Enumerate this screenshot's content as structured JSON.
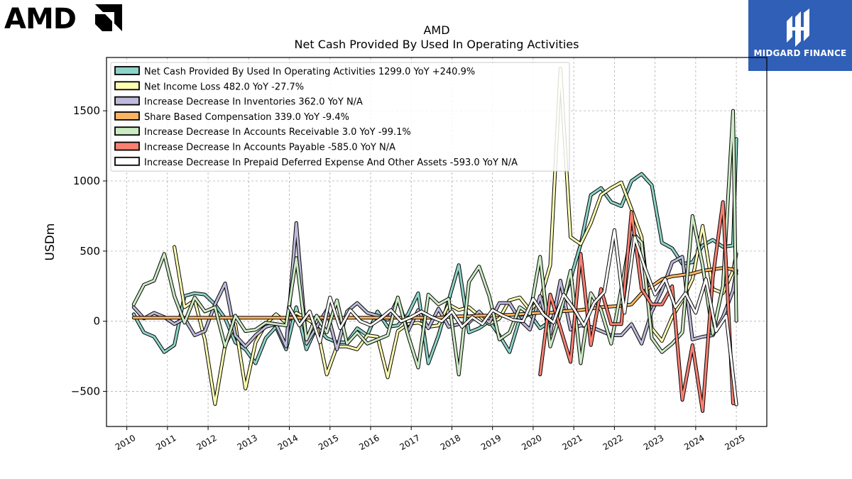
{
  "brand": {
    "company_logo_text": "AMD",
    "publisher_name": "MIDGARD FINANCE"
  },
  "chart_data": {
    "type": "line",
    "title": "AMD",
    "subtitle": "Net Cash Provided By Used In Operating Activities",
    "xlabel": "",
    "ylabel": "USDm",
    "xlim": [
      2009.5,
      2025.75
    ],
    "ylim": [
      -750,
      1880
    ],
    "x_ticks": [
      "2010",
      "2011",
      "2012",
      "2013",
      "2014",
      "2015",
      "2016",
      "2017",
      "2018",
      "2019",
      "2020",
      "2021",
      "2022",
      "2023",
      "2024",
      "2025"
    ],
    "y_ticks": [
      -500,
      0,
      500,
      1000,
      1500
    ],
    "y_tick_labels": [
      "−500",
      "0",
      "500",
      "1000",
      "1500"
    ],
    "grid": true,
    "legend_position": "top-left",
    "series": [
      {
        "name": "Net Cash Provided By Used In Operating Activities",
        "legend": "Net Cash Provided By Used In Operating Activities  1299.0 YoY +240.9%",
        "color": "#8dd3c7",
        "x": [
          2010.17,
          2010.42,
          2010.67,
          2010.92,
          2011.17,
          2011.42,
          2011.67,
          2011.92,
          2012.17,
          2012.42,
          2012.67,
          2012.92,
          2013.17,
          2013.42,
          2013.67,
          2013.92,
          2014.17,
          2014.42,
          2014.67,
          2014.92,
          2015.17,
          2015.42,
          2015.67,
          2015.92,
          2016.17,
          2016.42,
          2016.67,
          2016.92,
          2017.17,
          2017.42,
          2017.67,
          2017.92,
          2018.17,
          2018.42,
          2018.67,
          2018.92,
          2019.17,
          2019.42,
          2019.67,
          2019.92,
          2020.17,
          2020.42,
          2020.67,
          2020.92,
          2021.17,
          2021.42,
          2021.67,
          2021.92,
          2022.17,
          2022.42,
          2022.67,
          2022.92,
          2023.17,
          2023.42,
          2023.67,
          2023.92,
          2024.17,
          2024.42,
          2024.67,
          2024.92,
          2025.0
        ],
        "values": [
          50,
          -80,
          -110,
          -220,
          -170,
          180,
          200,
          190,
          120,
          20,
          -150,
          -200,
          -300,
          -120,
          -40,
          -200,
          100,
          -200,
          -40,
          -120,
          -150,
          -150,
          -50,
          -100,
          70,
          -40,
          -30,
          50,
          200,
          -300,
          -100,
          150,
          400,
          -80,
          -50,
          0,
          -100,
          -220,
          20,
          50,
          -50,
          0,
          100,
          300,
          550,
          900,
          950,
          850,
          820,
          1000,
          1050,
          970,
          560,
          520,
          410,
          420,
          540,
          580,
          530,
          540,
          1300
        ]
      },
      {
        "name": "Net Income Loss",
        "legend": "Net Income Loss  482.0 YoY -27.7%",
        "color": "#ffffb3",
        "x": [
          2011.17,
          2011.42,
          2011.67,
          2011.92,
          2012.17,
          2012.42,
          2012.67,
          2012.92,
          2013.17,
          2013.42,
          2013.67,
          2013.92,
          2014.17,
          2014.42,
          2014.67,
          2014.92,
          2015.17,
          2015.42,
          2015.67,
          2015.92,
          2016.17,
          2016.42,
          2016.67,
          2016.92,
          2017.17,
          2017.42,
          2017.67,
          2017.92,
          2018.17,
          2018.42,
          2018.67,
          2018.92,
          2019.17,
          2019.42,
          2019.67,
          2019.92,
          2020.17,
          2020.42,
          2020.67,
          2020.92,
          2021.17,
          2021.42,
          2021.67,
          2021.92,
          2022.17,
          2022.42,
          2022.67,
          2022.92,
          2023.17,
          2023.42,
          2023.67,
          2023.92,
          2024.17,
          2024.42,
          2024.67,
          2024.92,
          2025.0
        ],
        "values": [
          530,
          100,
          150,
          -130,
          -590,
          -170,
          -20,
          -480,
          -150,
          -20,
          50,
          -10,
          60,
          20,
          -30,
          -380,
          -180,
          -180,
          -200,
          -100,
          -110,
          -400,
          -70,
          -20,
          -10,
          -40,
          -30,
          120,
          80,
          100,
          40,
          -20,
          20,
          150,
          170,
          80,
          150,
          400,
          1800,
          600,
          550,
          700,
          900,
          950,
          990,
          800,
          600,
          -50,
          -140,
          30,
          150,
          300,
          680,
          230,
          200,
          360,
          480
        ]
      },
      {
        "name": "Increase Decrease In Inventories",
        "legend": "Increase Decrease In Inventories  362.0 YoY N/A",
        "color": "#bebada",
        "x": [
          2010.17,
          2010.42,
          2010.67,
          2010.92,
          2011.17,
          2011.42,
          2011.67,
          2011.92,
          2012.17,
          2012.42,
          2012.67,
          2012.92,
          2013.17,
          2013.42,
          2013.67,
          2013.92,
          2014.17,
          2014.42,
          2014.67,
          2014.92,
          2015.17,
          2015.42,
          2015.67,
          2015.92,
          2016.17,
          2016.42,
          2016.67,
          2016.92,
          2017.17,
          2017.42,
          2017.67,
          2017.92,
          2018.17,
          2018.42,
          2018.67,
          2018.92,
          2019.17,
          2019.42,
          2019.67,
          2019.92,
          2020.17,
          2020.42,
          2020.67,
          2020.92,
          2021.17,
          2021.42,
          2021.67,
          2021.92,
          2022.17,
          2022.42,
          2022.67,
          2022.92,
          2023.17,
          2023.42,
          2023.67,
          2023.92,
          2024.17,
          2024.42,
          2024.67,
          2024.92,
          2025.0
        ],
        "values": [
          100,
          20,
          60,
          30,
          -20,
          20,
          -100,
          -70,
          120,
          270,
          -100,
          -180,
          -100,
          -40,
          -20,
          -180,
          700,
          -160,
          -40,
          80,
          -200,
          70,
          130,
          60,
          40,
          10,
          160,
          -70,
          80,
          -50,
          90,
          -40,
          -20,
          -10,
          70,
          -10,
          130,
          130,
          10,
          -60,
          180,
          -90,
          290,
          -60,
          -30,
          -40,
          -70,
          -100,
          -100,
          -20,
          -160,
          70,
          220,
          420,
          460,
          -130,
          -110,
          -100,
          30,
          220,
          362
        ]
      },
      {
        "name": "Share Based Compensation",
        "legend": "Share Based Compensation  339.0 YoY -9.4%",
        "color": "#fdb462",
        "x": [
          2010.17,
          2010.42,
          2010.67,
          2010.92,
          2011.17,
          2011.42,
          2011.67,
          2011.92,
          2012.17,
          2012.42,
          2012.67,
          2012.92,
          2013.17,
          2013.42,
          2013.67,
          2013.92,
          2014.17,
          2014.42,
          2014.67,
          2014.92,
          2015.17,
          2015.42,
          2015.67,
          2015.92,
          2016.17,
          2016.42,
          2016.67,
          2016.92,
          2017.17,
          2017.42,
          2017.67,
          2017.92,
          2018.17,
          2018.42,
          2018.67,
          2018.92,
          2019.17,
          2019.42,
          2019.67,
          2019.92,
          2020.17,
          2020.42,
          2020.67,
          2020.92,
          2021.17,
          2021.42,
          2021.67,
          2021.92,
          2022.17,
          2022.42,
          2022.67,
          2022.92,
          2023.17,
          2023.42,
          2023.67,
          2023.92,
          2024.17,
          2024.42,
          2024.67,
          2024.92,
          2025.0
        ],
        "values": [
          25,
          25,
          25,
          25,
          25,
          25,
          25,
          25,
          25,
          25,
          25,
          25,
          25,
          25,
          25,
          25,
          25,
          25,
          25,
          25,
          25,
          25,
          25,
          25,
          25,
          25,
          25,
          25,
          25,
          25,
          25,
          30,
          35,
          35,
          40,
          40,
          45,
          45,
          50,
          55,
          60,
          60,
          70,
          75,
          80,
          90,
          100,
          105,
          110,
          120,
          200,
          250,
          300,
          320,
          330,
          340,
          360,
          370,
          380,
          370,
          339
        ]
      },
      {
        "name": "Increase Decrease In Accounts Receivable",
        "legend": "Increase Decrease In Accounts Receivable  3.0 YoY -99.1%",
        "color": "#ccebc5",
        "x": [
          2010.17,
          2010.42,
          2010.67,
          2010.92,
          2011.17,
          2011.42,
          2011.67,
          2011.92,
          2012.17,
          2012.42,
          2012.67,
          2012.92,
          2013.17,
          2013.42,
          2013.67,
          2013.92,
          2014.17,
          2014.42,
          2014.67,
          2014.92,
          2015.17,
          2015.42,
          2015.67,
          2015.92,
          2016.17,
          2016.42,
          2016.67,
          2016.92,
          2017.17,
          2017.42,
          2017.67,
          2017.92,
          2018.17,
          2018.42,
          2018.67,
          2018.92,
          2019.17,
          2019.42,
          2019.67,
          2019.92,
          2020.17,
          2020.42,
          2020.67,
          2020.92,
          2021.17,
          2021.42,
          2021.67,
          2021.92,
          2022.17,
          2022.42,
          2022.67,
          2022.92,
          2023.17,
          2023.42,
          2023.67,
          2023.92,
          2024.17,
          2024.42,
          2024.67,
          2024.92,
          2025.0
        ],
        "values": [
          120,
          260,
          290,
          480,
          180,
          -10,
          170,
          70,
          100,
          -180,
          40,
          -70,
          -60,
          -10,
          -20,
          -30,
          450,
          -130,
          40,
          -80,
          150,
          -160,
          -80,
          -160,
          -130,
          -100,
          170,
          -100,
          -330,
          190,
          120,
          160,
          -380,
          280,
          390,
          180,
          -130,
          -80,
          100,
          50,
          460,
          -180,
          50,
          360,
          -300,
          200,
          80,
          -160,
          230,
          640,
          560,
          -120,
          -220,
          -160,
          -80,
          750,
          400,
          -90,
          250,
          1500,
          3
        ]
      },
      {
        "name": "Increase Decrease In Accounts Payable",
        "legend": "Increase Decrease In Accounts Payable  -585.0 YoY N/A",
        "color": "#fb8072",
        "x": [
          2020.17,
          2020.42,
          2020.67,
          2020.92,
          2021.17,
          2021.42,
          2021.67,
          2021.92,
          2022.17,
          2022.42,
          2022.67,
          2022.92,
          2023.17,
          2023.42,
          2023.67,
          2023.92,
          2024.17,
          2024.42,
          2024.67,
          2024.92,
          2025.0
        ],
        "values": [
          -380,
          190,
          -50,
          -290,
          480,
          -170,
          230,
          -20,
          -20,
          780,
          230,
          120,
          120,
          250,
          -560,
          -170,
          -640,
          310,
          850,
          -585,
          -585
        ]
      },
      {
        "name": "Increase Decrease In Prepaid Deferred Expense And Other Assets",
        "legend": "Increase Decrease In Prepaid Deferred Expense And Other Assets  -593.0 YoY N/A",
        "color": "#ffffff",
        "x": [
          2014.0,
          2014.25,
          2014.5,
          2014.75,
          2015.0,
          2015.25,
          2015.5,
          2015.75,
          2016.0,
          2016.25,
          2016.5,
          2016.75,
          2017.0,
          2017.25,
          2017.5,
          2017.75,
          2018.0,
          2018.25,
          2018.5,
          2018.75,
          2019.0,
          2019.25,
          2019.5,
          2019.75,
          2020.0,
          2020.25,
          2020.5,
          2020.75,
          2021.0,
          2021.25,
          2021.5,
          2021.75,
          2022.0,
          2022.25,
          2022.5,
          2022.75,
          2023.0,
          2023.25,
          2023.5,
          2023.75,
          2024.0,
          2024.25,
          2024.5,
          2024.75,
          2025.0
        ],
        "values": [
          100,
          -30,
          70,
          -150,
          170,
          -50,
          80,
          0,
          -30,
          20,
          80,
          0,
          30,
          70,
          30,
          0,
          70,
          -40,
          30,
          -20,
          80,
          40,
          10,
          0,
          160,
          50,
          -10,
          190,
          90,
          -30,
          130,
          210,
          650,
          60,
          600,
          380,
          190,
          300,
          100,
          200,
          60,
          300,
          -70,
          40,
          -593
        ]
      }
    ]
  }
}
